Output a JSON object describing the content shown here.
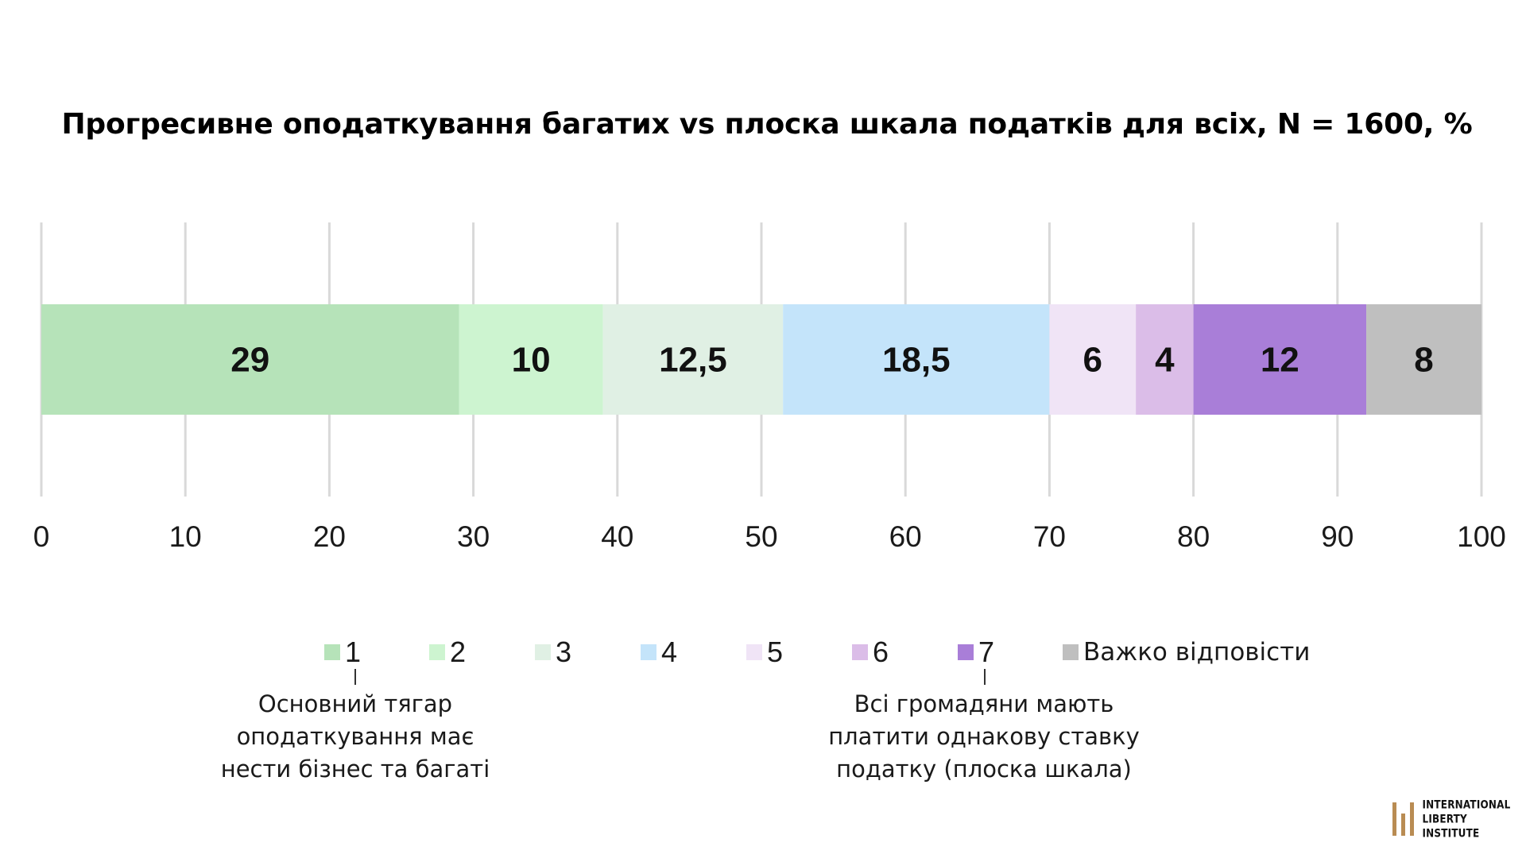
{
  "chart_data": {
    "type": "bar",
    "orientation": "horizontal",
    "stacked": true,
    "title": "Прогресивне оподаткування багатих vs плоска шкала податків для всіх, N = 1600, %",
    "xlim": [
      0,
      100
    ],
    "x_ticks": [
      "0",
      "10",
      "20",
      "30",
      "40",
      "50",
      "60",
      "70",
      "80",
      "90",
      "100"
    ],
    "grid": "vertical",
    "legend_position": "bottom",
    "series": [
      {
        "name": "1",
        "value": 29,
        "label": "29",
        "color": "#b6e3b9"
      },
      {
        "name": "2",
        "value": 10,
        "label": "10",
        "color": "#cdf4d0"
      },
      {
        "name": "3",
        "value": 12.5,
        "label": "12,5",
        "color": "#e0f0e4"
      },
      {
        "name": "4",
        "value": 18.5,
        "label": "18,5",
        "color": "#c4e4fa"
      },
      {
        "name": "5",
        "value": 6,
        "label": "6",
        "color": "#f0e4f6"
      },
      {
        "name": "6",
        "value": 4,
        "label": "4",
        "color": "#dbbde8"
      },
      {
        "name": "7",
        "value": 12,
        "label": "12",
        "color": "#a97ed8"
      },
      {
        "name": "Важко відповісти",
        "value": 8,
        "label": "8",
        "color": "#bfbfbf"
      }
    ],
    "scale_notes": {
      "left": "Основний тягар\nоподаткування має\nнести бізнес та багаті",
      "right": "Всі громадяни мають\nплатити однакову ставку\nподатку (плоска шкала)"
    }
  },
  "logo": {
    "text": "INTERNATIONAL\nLIBERTY INSTITUTE",
    "color": "#b98c53"
  }
}
